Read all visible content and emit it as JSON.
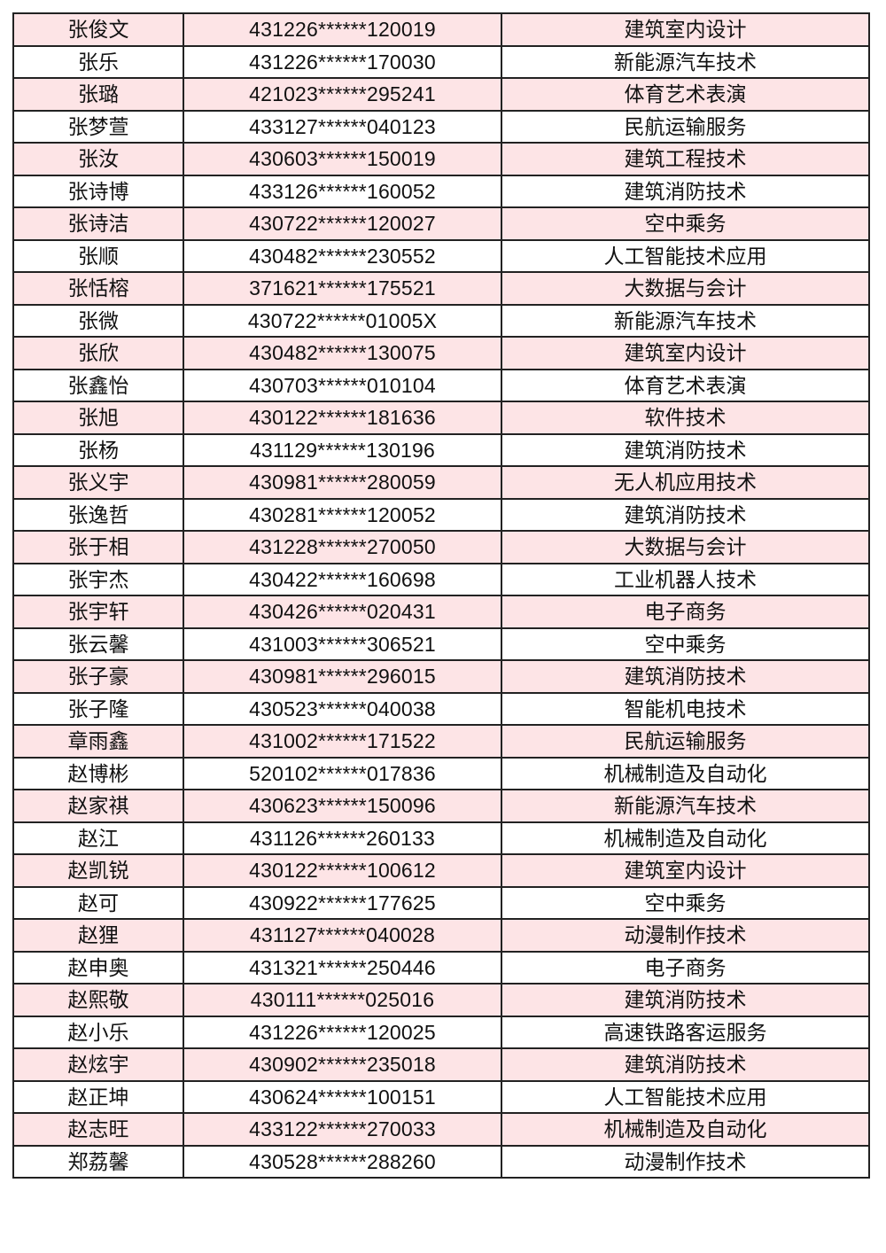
{
  "colors": {
    "row_highlight": "#fde4e6",
    "border": "#222222"
  },
  "rows": [
    [
      "张俊文",
      "431226******120019",
      "建筑室内设计"
    ],
    [
      "张乐",
      "431226******170030",
      "新能源汽车技术"
    ],
    [
      "张璐",
      "421023******295241",
      "体育艺术表演"
    ],
    [
      "张梦萱",
      "433127******040123",
      "民航运输服务"
    ],
    [
      "张汝",
      "430603******150019",
      "建筑工程技术"
    ],
    [
      "张诗博",
      "433126******160052",
      "建筑消防技术"
    ],
    [
      "张诗洁",
      "430722******120027",
      "空中乘务"
    ],
    [
      "张顺",
      "430482******230552",
      "人工智能技术应用"
    ],
    [
      "张恬榕",
      "371621******175521",
      "大数据与会计"
    ],
    [
      "张微",
      "430722******01005X",
      "新能源汽车技术"
    ],
    [
      "张欣",
      "430482******130075",
      "建筑室内设计"
    ],
    [
      "张鑫怡",
      "430703******010104",
      "体育艺术表演"
    ],
    [
      "张旭",
      "430122******181636",
      "软件技术"
    ],
    [
      "张杨",
      "431129******130196",
      "建筑消防技术"
    ],
    [
      "张义宇",
      "430981******280059",
      "无人机应用技术"
    ],
    [
      "张逸哲",
      "430281******120052",
      "建筑消防技术"
    ],
    [
      "张于相",
      "431228******270050",
      "大数据与会计"
    ],
    [
      "张宇杰",
      "430422******160698",
      "工业机器人技术"
    ],
    [
      "张宇轩",
      "430426******020431",
      "电子商务"
    ],
    [
      "张云馨",
      "431003******306521",
      "空中乘务"
    ],
    [
      "张子豪",
      "430981******296015",
      "建筑消防技术"
    ],
    [
      "张子隆",
      "430523******040038",
      "智能机电技术"
    ],
    [
      "章雨鑫",
      "431002******171522",
      "民航运输服务"
    ],
    [
      "赵博彬",
      "520102******017836",
      "机械制造及自动化"
    ],
    [
      "赵家祺",
      "430623******150096",
      "新能源汽车技术"
    ],
    [
      "赵江",
      "431126******260133",
      "机械制造及自动化"
    ],
    [
      "赵凯锐",
      "430122******100612",
      "建筑室内设计"
    ],
    [
      "赵可",
      "430922******177625",
      "空中乘务"
    ],
    [
      "赵狸",
      "431127******040028",
      "动漫制作技术"
    ],
    [
      "赵申奥",
      "431321******250446",
      "电子商务"
    ],
    [
      "赵熙敬",
      "430111******025016",
      "建筑消防技术"
    ],
    [
      "赵小乐",
      "431226******120025",
      "高速铁路客运服务"
    ],
    [
      "赵炫宇",
      "430902******235018",
      "建筑消防技术"
    ],
    [
      "赵正坤",
      "430624******100151",
      "人工智能技术应用"
    ],
    [
      "赵志旺",
      "433122******270033",
      "机械制造及自动化"
    ],
    [
      "郑荔馨",
      "430528******288260",
      "动漫制作技术"
    ]
  ]
}
